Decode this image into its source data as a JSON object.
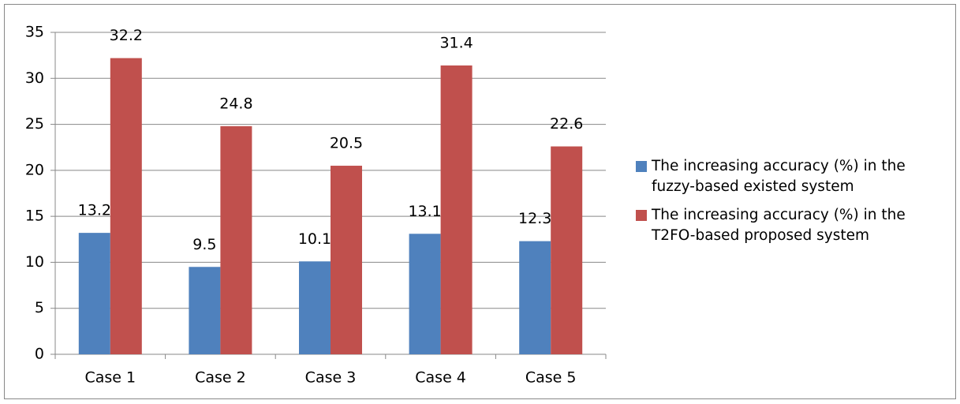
{
  "chart_data": {
    "type": "bar",
    "categories": [
      "Case 1",
      "Case 2",
      "Case 3",
      "Case 4",
      "Case 5"
    ],
    "series": [
      {
        "name": "The increasing accuracy (%) in the fuzzy-based existed system",
        "color": "#4f81bd",
        "values": [
          13.2,
          9.5,
          10.1,
          13.1,
          12.3
        ]
      },
      {
        "name": "The increasing accuracy (%) in the T2FO-based proposed system",
        "color": "#c0504d",
        "values": [
          32.2,
          24.8,
          20.5,
          31.4,
          22.6
        ]
      }
    ],
    "ylim": [
      0,
      35
    ],
    "yticks": [
      0,
      5,
      10,
      15,
      20,
      25,
      30,
      35
    ],
    "grid": true,
    "legend": "right"
  }
}
